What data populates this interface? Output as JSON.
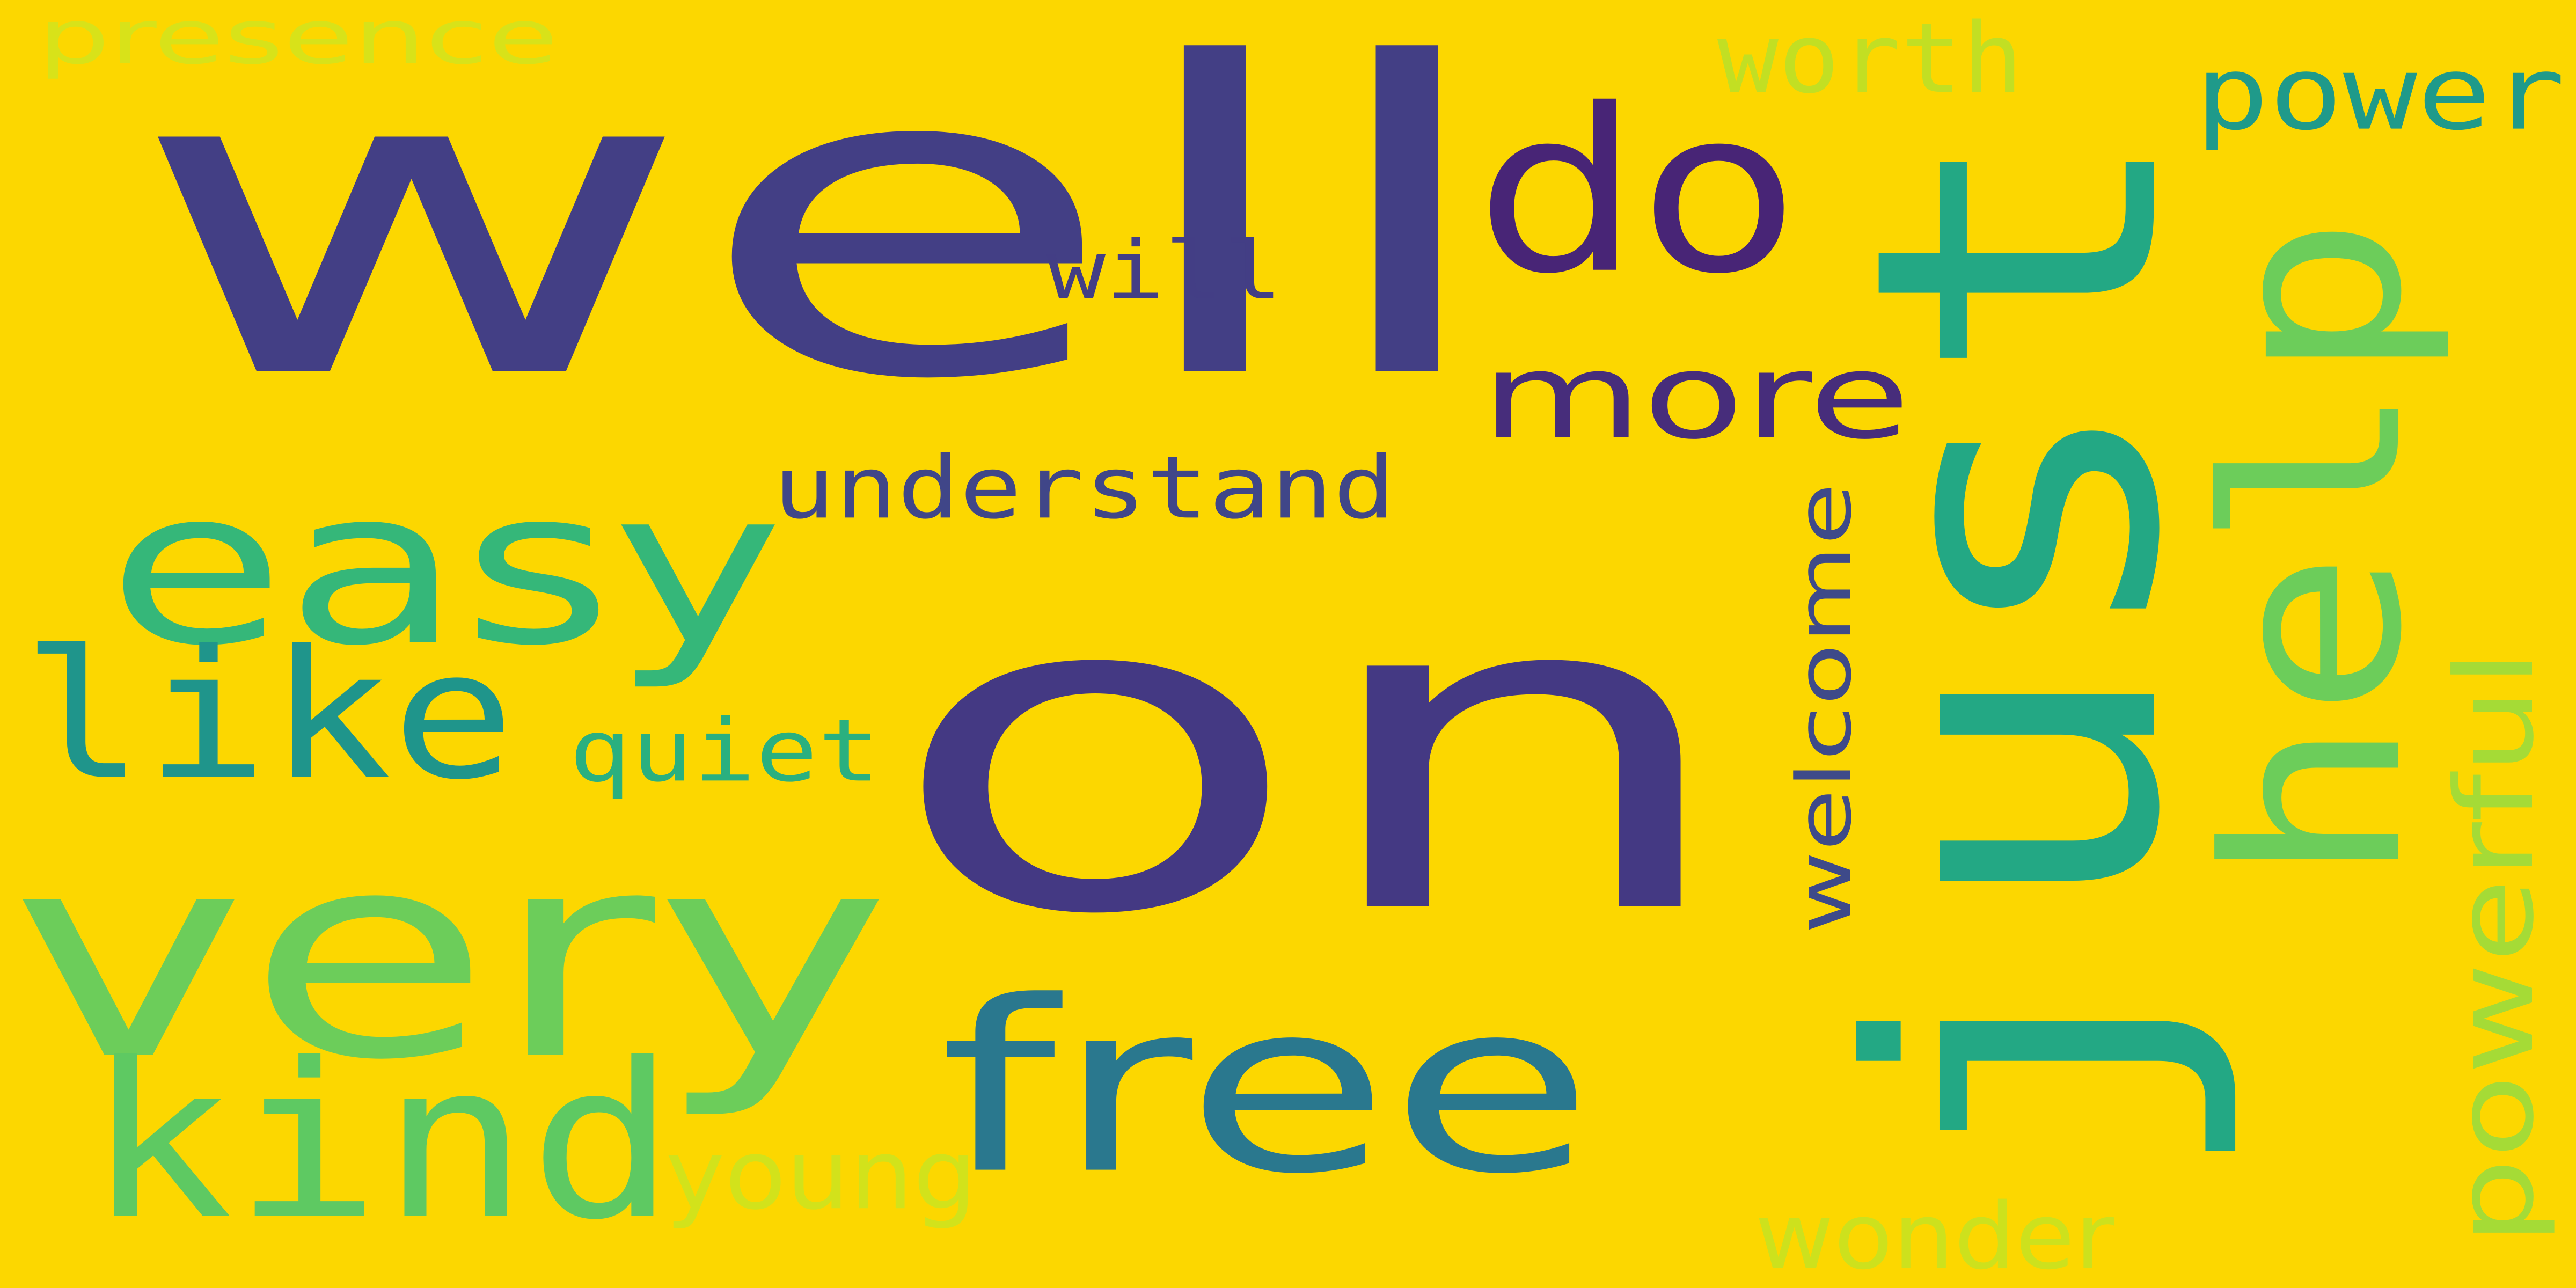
{
  "cloud": {
    "background": "#fcd700",
    "words": [
      {
        "text": "well",
        "color": "#433f85",
        "rotated": false
      },
      {
        "text": "on",
        "color": "#443983",
        "rotated": false
      },
      {
        "text": "just",
        "color": "#23a884",
        "rotated": true
      },
      {
        "text": "do",
        "color": "#482576",
        "rotated": false
      },
      {
        "text": "more",
        "color": "#472d7b",
        "rotated": false
      },
      {
        "text": "help",
        "color": "#6ccd5a",
        "rotated": true
      },
      {
        "text": "easy",
        "color": "#35b779",
        "rotated": false
      },
      {
        "text": "like",
        "color": "#1f958b",
        "rotated": false
      },
      {
        "text": "very",
        "color": "#6ccd5a",
        "rotated": false
      },
      {
        "text": "kind",
        "color": "#5ec962",
        "rotated": false
      },
      {
        "text": "free",
        "color": "#2a788e",
        "rotated": false
      },
      {
        "text": "understand",
        "color": "#404688",
        "rotated": false
      },
      {
        "text": "will",
        "color": "#433e85",
        "rotated": false
      },
      {
        "text": "quiet",
        "color": "#2ab07f",
        "rotated": false
      },
      {
        "text": "welcome",
        "color": "#3e4a89",
        "rotated": true
      },
      {
        "text": "power",
        "color": "#1f9a8a",
        "rotated": false
      },
      {
        "text": "powerful",
        "color": "#a5db36",
        "rotated": true
      },
      {
        "text": "worth",
        "color": "#c2df23",
        "rotated": false
      },
      {
        "text": "presence",
        "color": "#d8e219",
        "rotated": false
      },
      {
        "text": "young",
        "color": "#d2e21b",
        "rotated": false
      },
      {
        "text": "wonder",
        "color": "#cde11d",
        "rotated": false
      }
    ]
  }
}
